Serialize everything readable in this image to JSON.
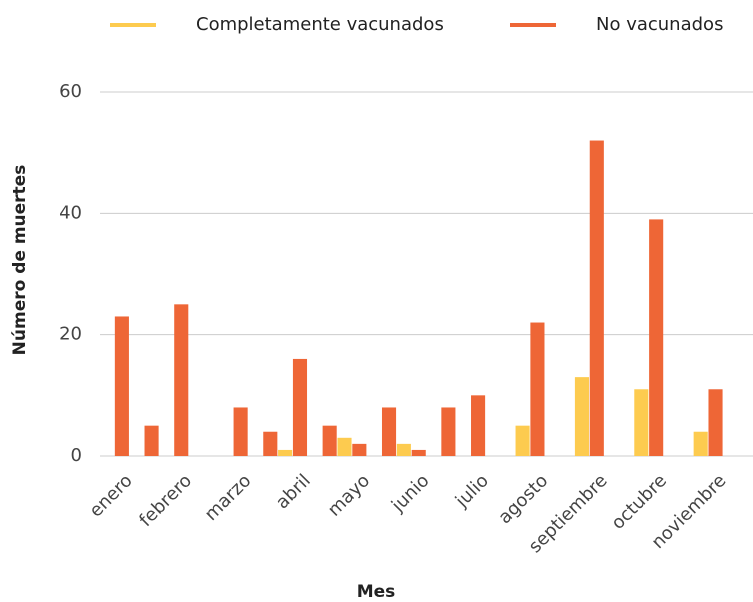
{
  "chart_data": {
    "type": "bar",
    "x_label": "Mes",
    "y_label": "Número de muertes",
    "categories": [
      "enero",
      null,
      "febrero",
      null,
      "marzo",
      null,
      "abril",
      null,
      "mayo",
      null,
      "junio",
      null,
      "julio",
      null,
      "agosto",
      null,
      "septiembre",
      null,
      "octubre",
      null,
      "noviembre",
      null
    ],
    "series": [
      {
        "name": "Completamente vacunados",
        "color": "#fdcb4f",
        "values": [
          0,
          0,
          0,
          0,
          0,
          0,
          1,
          0,
          3,
          0,
          2,
          0,
          0,
          0,
          5,
          0,
          13,
          0,
          11,
          0,
          4,
          0
        ]
      },
      {
        "name": "No vacunados",
        "color": "#ee6636",
        "values": [
          23,
          5,
          25,
          0,
          8,
          4,
          16,
          5,
          2,
          8,
          1,
          8,
          10,
          0,
          22,
          0,
          52,
          0,
          39,
          0,
          11,
          0
        ]
      }
    ],
    "ylim": [
      0,
      60
    ],
    "yticks": [
      0,
      20,
      40,
      60
    ],
    "grid": true,
    "legend": "top"
  }
}
